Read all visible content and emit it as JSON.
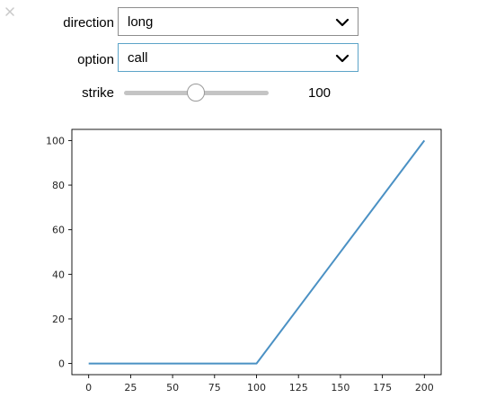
{
  "controls": {
    "close_icon": "close-icon",
    "direction": {
      "label": "direction",
      "value": "long",
      "icon": "chevron-down-icon"
    },
    "option": {
      "label": "option",
      "value": "call",
      "icon": "chevron-down-icon"
    },
    "strike": {
      "label": "strike",
      "value": "100",
      "level": 0.5
    }
  },
  "chart_data": {
    "type": "line",
    "title": "",
    "xlabel": "",
    "ylabel": "",
    "xlim": [
      -10,
      210
    ],
    "ylim": [
      -5,
      105
    ],
    "grid": false,
    "x_ticks": [
      0,
      25,
      50,
      75,
      100,
      125,
      150,
      175,
      200
    ],
    "y_ticks": [
      0,
      20,
      40,
      60,
      80,
      100
    ],
    "series": [
      {
        "color": "#4b91c4",
        "x": [
          0,
          100,
          200
        ],
        "y": [
          0,
          0,
          100
        ]
      }
    ]
  }
}
